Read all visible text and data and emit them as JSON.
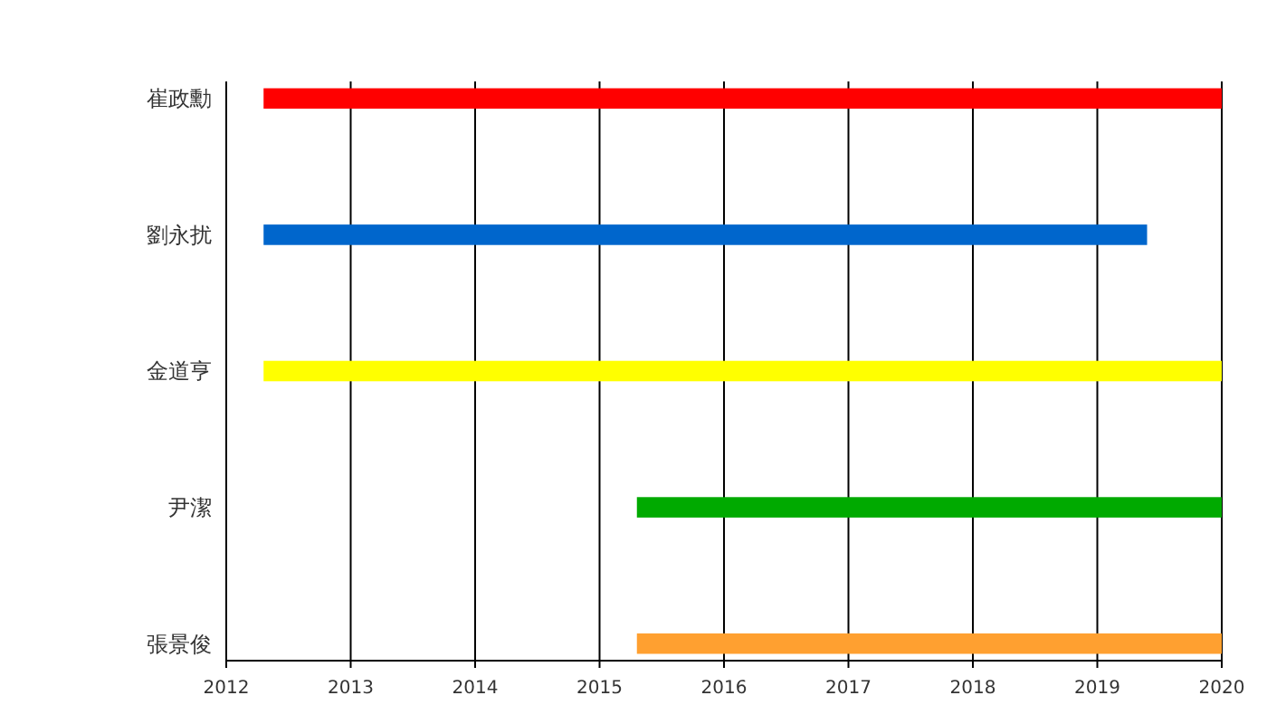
{
  "chart_data": {
    "type": "bar",
    "orientation": "horizontal",
    "categories": [
      "崔政勳",
      "劉永扰",
      "金道亨",
      "尹潔",
      "張景俊"
    ],
    "base": [
      2012.3,
      2012.3,
      2012.3,
      2015.3,
      2015.3
    ],
    "values": [
      7.7,
      7.1,
      7.7,
      4.7,
      4.7
    ],
    "colors": [
      "#ff0000",
      "#0066cc",
      "#ffff00",
      "#00aa00",
      "#ffa030"
    ],
    "xlim": [
      2012,
      2020
    ],
    "xticks": [
      2012,
      2013,
      2014,
      2015,
      2016,
      2017,
      2018,
      2019,
      2020
    ],
    "grid": "x"
  }
}
